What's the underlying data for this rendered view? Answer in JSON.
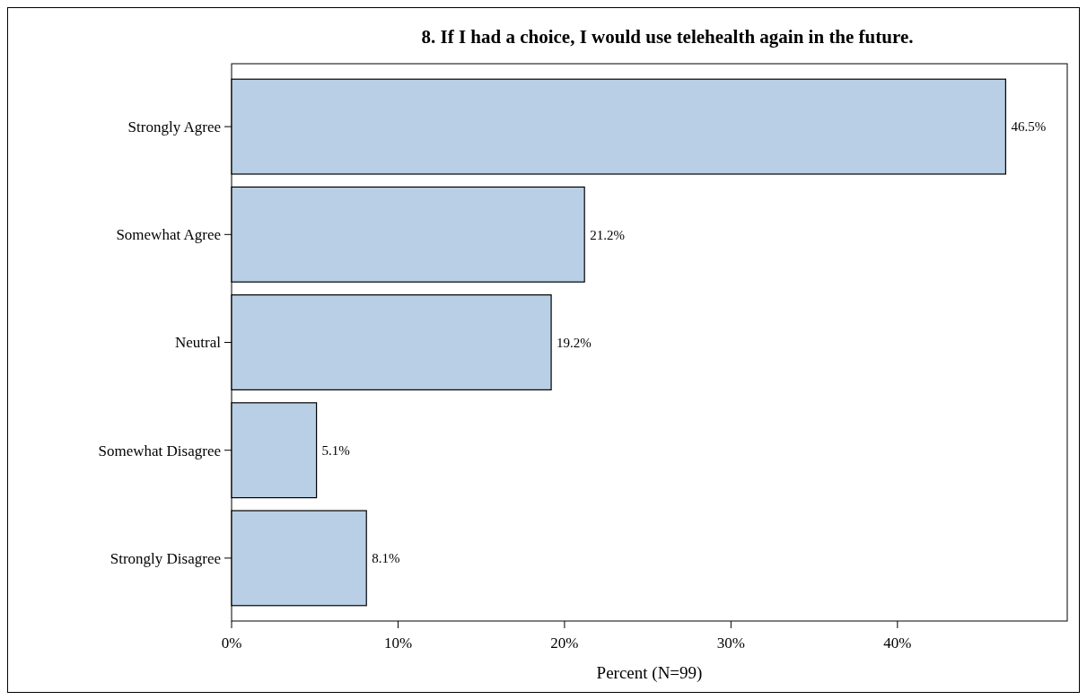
{
  "chart_data": {
    "type": "bar",
    "orientation": "horizontal",
    "title": "8. If I had a choice, I would use telehealth again in the future.",
    "xlabel": "Percent (N=99)",
    "categories": [
      "Strongly Agree",
      "Somewhat Agree",
      "Neutral",
      "Somewhat Disagree",
      "Strongly Disagree"
    ],
    "values": [
      46.5,
      21.2,
      19.2,
      5.1,
      8.1
    ],
    "value_labels": [
      "46.5%",
      "21.2%",
      "19.2%",
      "5.1%",
      "8.1%"
    ],
    "color": "#b9cfe6",
    "xlim": [
      0,
      50.2
    ],
    "xticks": [
      {
        "value": 0,
        "label": "0%"
      },
      {
        "value": 10,
        "label": "10%"
      },
      {
        "value": 20,
        "label": "20%"
      },
      {
        "value": 30,
        "label": "30%"
      },
      {
        "value": 40,
        "label": "40%"
      }
    ],
    "grid": false
  }
}
